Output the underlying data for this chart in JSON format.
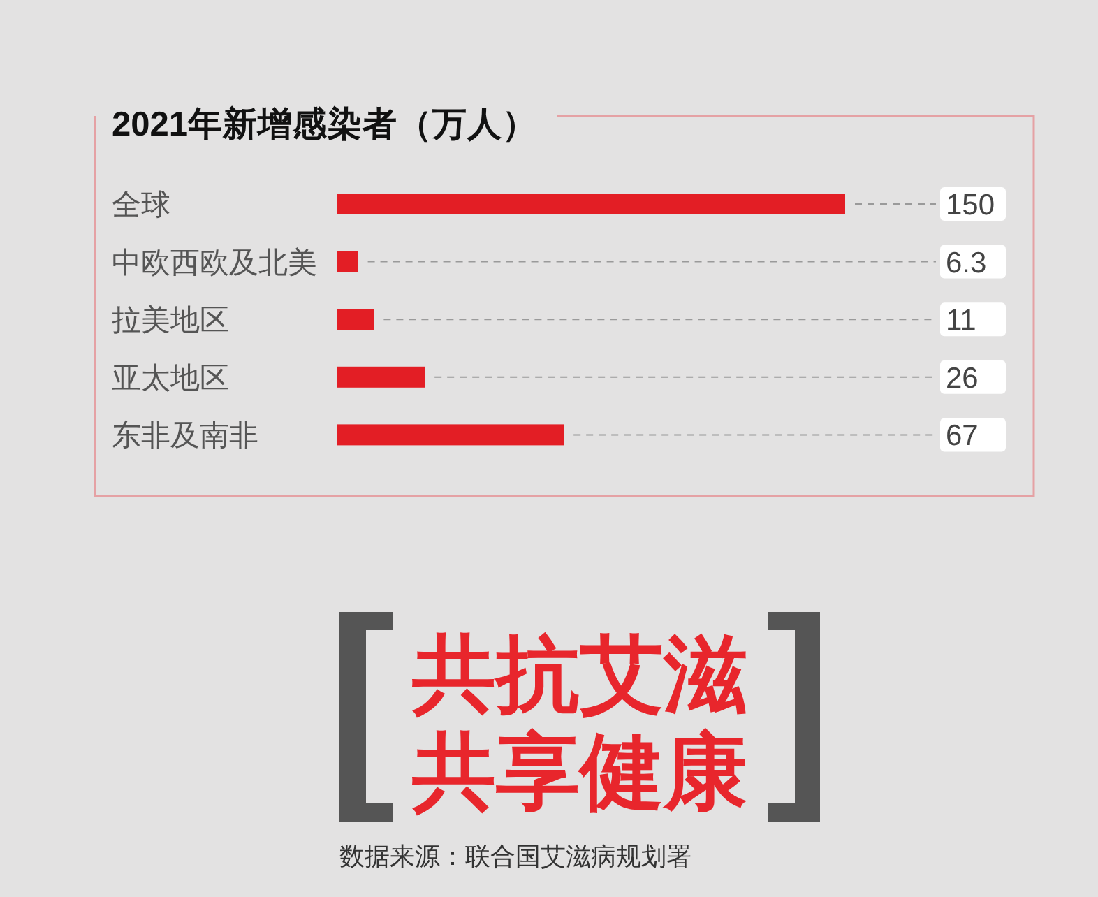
{
  "chart_data": {
    "type": "bar",
    "orientation": "horizontal",
    "title": "2021年新增感染者（万人）",
    "categories": [
      "全球",
      "中欧西欧及北美",
      "拉美地区",
      "亚太地区",
      "东非及南非"
    ],
    "values": [
      150,
      6.3,
      11,
      26,
      67
    ],
    "color": "#e31e25",
    "data_labels": true,
    "annotations": [
      "共抗艾滋",
      "共享健康",
      "数据来源：联合国艾滋病规划署"
    ]
  }
}
